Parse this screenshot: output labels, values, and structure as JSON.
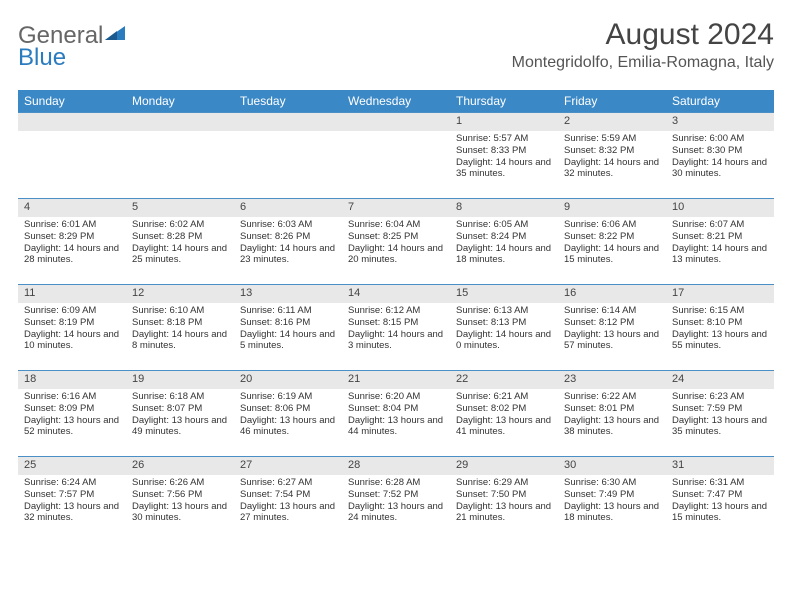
{
  "logo": {
    "part1": "General",
    "part2": "Blue"
  },
  "title": "August 2024",
  "location": "Montegridolfo, Emilia-Romagna, Italy",
  "colors": {
    "header_bg": "#3b88c7",
    "band_bg": "#e8e8e8",
    "band_border": "#4a8fc6",
    "text": "#333333",
    "title_color": "#444444"
  },
  "weekdays": [
    "Sunday",
    "Monday",
    "Tuesday",
    "Wednesday",
    "Thursday",
    "Friday",
    "Saturday"
  ],
  "weeks": [
    [
      {
        "day": "",
        "sunrise": "",
        "sunset": "",
        "daylight": ""
      },
      {
        "day": "",
        "sunrise": "",
        "sunset": "",
        "daylight": ""
      },
      {
        "day": "",
        "sunrise": "",
        "sunset": "",
        "daylight": ""
      },
      {
        "day": "",
        "sunrise": "",
        "sunset": "",
        "daylight": ""
      },
      {
        "day": "1",
        "sunrise": "Sunrise: 5:57 AM",
        "sunset": "Sunset: 8:33 PM",
        "daylight": "Daylight: 14 hours and 35 minutes."
      },
      {
        "day": "2",
        "sunrise": "Sunrise: 5:59 AM",
        "sunset": "Sunset: 8:32 PM",
        "daylight": "Daylight: 14 hours and 32 minutes."
      },
      {
        "day": "3",
        "sunrise": "Sunrise: 6:00 AM",
        "sunset": "Sunset: 8:30 PM",
        "daylight": "Daylight: 14 hours and 30 minutes."
      }
    ],
    [
      {
        "day": "4",
        "sunrise": "Sunrise: 6:01 AM",
        "sunset": "Sunset: 8:29 PM",
        "daylight": "Daylight: 14 hours and 28 minutes."
      },
      {
        "day": "5",
        "sunrise": "Sunrise: 6:02 AM",
        "sunset": "Sunset: 8:28 PM",
        "daylight": "Daylight: 14 hours and 25 minutes."
      },
      {
        "day": "6",
        "sunrise": "Sunrise: 6:03 AM",
        "sunset": "Sunset: 8:26 PM",
        "daylight": "Daylight: 14 hours and 23 minutes."
      },
      {
        "day": "7",
        "sunrise": "Sunrise: 6:04 AM",
        "sunset": "Sunset: 8:25 PM",
        "daylight": "Daylight: 14 hours and 20 minutes."
      },
      {
        "day": "8",
        "sunrise": "Sunrise: 6:05 AM",
        "sunset": "Sunset: 8:24 PM",
        "daylight": "Daylight: 14 hours and 18 minutes."
      },
      {
        "day": "9",
        "sunrise": "Sunrise: 6:06 AM",
        "sunset": "Sunset: 8:22 PM",
        "daylight": "Daylight: 14 hours and 15 minutes."
      },
      {
        "day": "10",
        "sunrise": "Sunrise: 6:07 AM",
        "sunset": "Sunset: 8:21 PM",
        "daylight": "Daylight: 14 hours and 13 minutes."
      }
    ],
    [
      {
        "day": "11",
        "sunrise": "Sunrise: 6:09 AM",
        "sunset": "Sunset: 8:19 PM",
        "daylight": "Daylight: 14 hours and 10 minutes."
      },
      {
        "day": "12",
        "sunrise": "Sunrise: 6:10 AM",
        "sunset": "Sunset: 8:18 PM",
        "daylight": "Daylight: 14 hours and 8 minutes."
      },
      {
        "day": "13",
        "sunrise": "Sunrise: 6:11 AM",
        "sunset": "Sunset: 8:16 PM",
        "daylight": "Daylight: 14 hours and 5 minutes."
      },
      {
        "day": "14",
        "sunrise": "Sunrise: 6:12 AM",
        "sunset": "Sunset: 8:15 PM",
        "daylight": "Daylight: 14 hours and 3 minutes."
      },
      {
        "day": "15",
        "sunrise": "Sunrise: 6:13 AM",
        "sunset": "Sunset: 8:13 PM",
        "daylight": "Daylight: 14 hours and 0 minutes."
      },
      {
        "day": "16",
        "sunrise": "Sunrise: 6:14 AM",
        "sunset": "Sunset: 8:12 PM",
        "daylight": "Daylight: 13 hours and 57 minutes."
      },
      {
        "day": "17",
        "sunrise": "Sunrise: 6:15 AM",
        "sunset": "Sunset: 8:10 PM",
        "daylight": "Daylight: 13 hours and 55 minutes."
      }
    ],
    [
      {
        "day": "18",
        "sunrise": "Sunrise: 6:16 AM",
        "sunset": "Sunset: 8:09 PM",
        "daylight": "Daylight: 13 hours and 52 minutes."
      },
      {
        "day": "19",
        "sunrise": "Sunrise: 6:18 AM",
        "sunset": "Sunset: 8:07 PM",
        "daylight": "Daylight: 13 hours and 49 minutes."
      },
      {
        "day": "20",
        "sunrise": "Sunrise: 6:19 AM",
        "sunset": "Sunset: 8:06 PM",
        "daylight": "Daylight: 13 hours and 46 minutes."
      },
      {
        "day": "21",
        "sunrise": "Sunrise: 6:20 AM",
        "sunset": "Sunset: 8:04 PM",
        "daylight": "Daylight: 13 hours and 44 minutes."
      },
      {
        "day": "22",
        "sunrise": "Sunrise: 6:21 AM",
        "sunset": "Sunset: 8:02 PM",
        "daylight": "Daylight: 13 hours and 41 minutes."
      },
      {
        "day": "23",
        "sunrise": "Sunrise: 6:22 AM",
        "sunset": "Sunset: 8:01 PM",
        "daylight": "Daylight: 13 hours and 38 minutes."
      },
      {
        "day": "24",
        "sunrise": "Sunrise: 6:23 AM",
        "sunset": "Sunset: 7:59 PM",
        "daylight": "Daylight: 13 hours and 35 minutes."
      }
    ],
    [
      {
        "day": "25",
        "sunrise": "Sunrise: 6:24 AM",
        "sunset": "Sunset: 7:57 PM",
        "daylight": "Daylight: 13 hours and 32 minutes."
      },
      {
        "day": "26",
        "sunrise": "Sunrise: 6:26 AM",
        "sunset": "Sunset: 7:56 PM",
        "daylight": "Daylight: 13 hours and 30 minutes."
      },
      {
        "day": "27",
        "sunrise": "Sunrise: 6:27 AM",
        "sunset": "Sunset: 7:54 PM",
        "daylight": "Daylight: 13 hours and 27 minutes."
      },
      {
        "day": "28",
        "sunrise": "Sunrise: 6:28 AM",
        "sunset": "Sunset: 7:52 PM",
        "daylight": "Daylight: 13 hours and 24 minutes."
      },
      {
        "day": "29",
        "sunrise": "Sunrise: 6:29 AM",
        "sunset": "Sunset: 7:50 PM",
        "daylight": "Daylight: 13 hours and 21 minutes."
      },
      {
        "day": "30",
        "sunrise": "Sunrise: 6:30 AM",
        "sunset": "Sunset: 7:49 PM",
        "daylight": "Daylight: 13 hours and 18 minutes."
      },
      {
        "day": "31",
        "sunrise": "Sunrise: 6:31 AM",
        "sunset": "Sunset: 7:47 PM",
        "daylight": "Daylight: 13 hours and 15 minutes."
      }
    ]
  ]
}
